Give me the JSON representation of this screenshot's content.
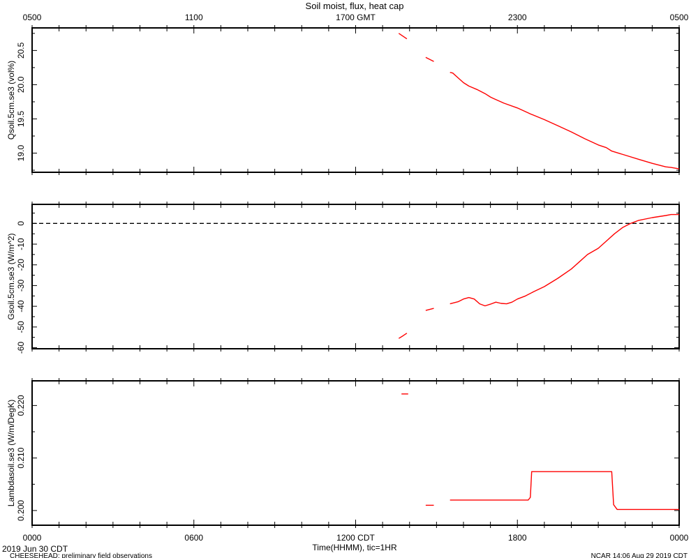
{
  "title": "Soil moist, flux, heat cap",
  "top_axis": {
    "ticks": [
      "0500",
      "1100",
      "1700 GMT",
      "2300",
      "0500"
    ]
  },
  "bottom_axis": {
    "ticks": [
      "0000",
      "0600",
      "1200 CDT",
      "1800",
      "0000"
    ],
    "label": "Time(HHMM), tic=1HR",
    "date_label": "2019 Jun 30 CDT"
  },
  "footer": {
    "left": "CHEESEHEAD: preliminary field observations",
    "right": "NCAR 14:06 Aug 29 2019 CDT"
  },
  "colors": {
    "series": "#ff0000",
    "axes": "#000000",
    "zero_line": "#000000"
  },
  "chart_data": [
    {
      "type": "line",
      "ylabel": "Qsoil.5cm.se3 (vol%)",
      "xlim": [
        0,
        24
      ],
      "ylim": [
        18.72,
        20.83
      ],
      "yticks": [
        19.0,
        19.5,
        20.0,
        20.5
      ],
      "yticklabels": [
        "19.0",
        "19.5",
        "20.0",
        "20.5"
      ],
      "series": [
        {
          "segments": [
            [
              [
                13.6,
                20.75
              ],
              [
                13.9,
                20.67
              ]
            ],
            [
              [
                14.6,
                20.4
              ],
              [
                14.9,
                20.34
              ]
            ],
            [
              [
                15.5,
                20.18
              ],
              [
                15.6,
                20.17
              ],
              [
                15.8,
                20.1
              ],
              [
                16.0,
                20.03
              ],
              [
                16.2,
                19.98
              ],
              [
                16.5,
                19.93
              ],
              [
                16.8,
                19.87
              ],
              [
                17.0,
                19.82
              ],
              [
                17.1,
                19.8
              ],
              [
                17.5,
                19.73
              ],
              [
                18.0,
                19.66
              ],
              [
                18.5,
                19.57
              ],
              [
                19.0,
                19.49
              ],
              [
                19.5,
                19.4
              ],
              [
                20.0,
                19.31
              ],
              [
                20.5,
                19.21
              ],
              [
                21.0,
                19.12
              ],
              [
                21.3,
                19.08
              ],
              [
                21.5,
                19.03
              ],
              [
                22.0,
                18.97
              ],
              [
                22.5,
                18.91
              ],
              [
                23.0,
                18.85
              ],
              [
                23.5,
                18.8
              ],
              [
                23.7,
                18.79
              ],
              [
                24.0,
                18.77
              ]
            ]
          ]
        }
      ]
    },
    {
      "type": "line",
      "ylabel": "Gsoil.5cm.se3 (W/m^2)",
      "xlim": [
        0,
        24
      ],
      "ylim": [
        -60.5,
        9.2
      ],
      "yticks": [
        0,
        -10,
        -20,
        -30,
        -40,
        -50,
        -60
      ],
      "yticklabels": [
        "0",
        "-10",
        "-20",
        "-30",
        "-40",
        "-50",
        "-60"
      ],
      "zero_line": 0,
      "series": [
        {
          "segments": [
            [
              [
                13.6,
                -55.5
              ],
              [
                13.75,
                -54.3
              ],
              [
                13.9,
                -53.0
              ]
            ],
            [
              [
                14.6,
                -42.0
              ],
              [
                14.9,
                -41.0
              ]
            ],
            [
              [
                15.5,
                -38.8
              ],
              [
                15.8,
                -37.8
              ],
              [
                16.0,
                -36.5
              ],
              [
                16.2,
                -35.8
              ],
              [
                16.4,
                -36.5
              ],
              [
                16.6,
                -38.8
              ],
              [
                16.8,
                -39.8
              ],
              [
                17.0,
                -39.0
              ],
              [
                17.2,
                -38.0
              ],
              [
                17.4,
                -38.6
              ],
              [
                17.6,
                -38.8
              ],
              [
                17.8,
                -38.0
              ],
              [
                18.0,
                -36.5
              ],
              [
                18.3,
                -35.0
              ],
              [
                18.6,
                -33.0
              ],
              [
                19.0,
                -30.5
              ],
              [
                19.5,
                -26.5
              ],
              [
                20.0,
                -22.0
              ],
              [
                20.3,
                -18.5
              ],
              [
                20.6,
                -15.0
              ],
              [
                21.0,
                -12.0
              ],
              [
                21.3,
                -8.5
              ],
              [
                21.6,
                -5.0
              ],
              [
                21.9,
                -2.0
              ],
              [
                22.2,
                0.0
              ],
              [
                22.5,
                1.5
              ],
              [
                23.0,
                2.8
              ],
              [
                23.5,
                3.8
              ],
              [
                23.7,
                4.3
              ],
              [
                24.0,
                4.3
              ]
            ]
          ]
        }
      ]
    },
    {
      "type": "line",
      "ylabel": "Lambdasoil.se3 (W/m/DegK)",
      "xlim": [
        0,
        24
      ],
      "ylim": [
        0.1972,
        0.2247
      ],
      "yticks": [
        0.2,
        0.21,
        0.22
      ],
      "yticklabels": [
        "0.200",
        "0.210",
        "0.220"
      ],
      "series": [
        {
          "segments": [
            [
              [
                13.7,
                0.2222
              ],
              [
                13.95,
                0.2222
              ]
            ],
            [
              [
                14.6,
                0.201
              ],
              [
                14.9,
                0.201
              ]
            ],
            [
              [
                15.5,
                0.202
              ],
              [
                18.4,
                0.202
              ],
              [
                18.48,
                0.2025
              ],
              [
                18.53,
                0.2074
              ],
              [
                21.5,
                0.2074
              ],
              [
                21.57,
                0.2011
              ],
              [
                21.7,
                0.2002
              ],
              [
                24.0,
                0.2002
              ]
            ]
          ]
        }
      ]
    }
  ]
}
